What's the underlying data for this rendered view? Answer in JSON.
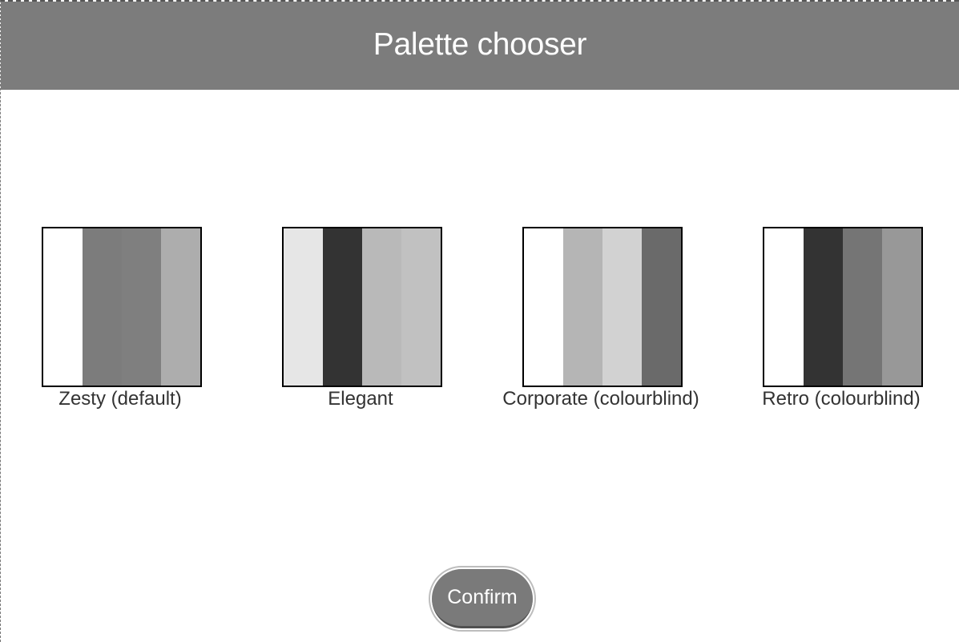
{
  "header": {
    "title": "Palette chooser"
  },
  "palettes": [
    {
      "label": "Zesty (default)",
      "colors": [
        "#ffffff",
        "#7c7c7c",
        "#7f7f7f",
        "#adadad"
      ]
    },
    {
      "label": "Elegant",
      "colors": [
        "#e6e6e6",
        "#333333",
        "#b9b9b9",
        "#c1c1c1"
      ]
    },
    {
      "label": "Corporate (colourblind)",
      "colors": [
        "#ffffff",
        "#b5b5b5",
        "#d2d2d2",
        "#6a6a6a"
      ]
    },
    {
      "label": "Retro (colourblind)",
      "colors": [
        "#ffffff",
        "#333333",
        "#757575",
        "#989898"
      ]
    }
  ],
  "confirm": {
    "label": "Confirm"
  }
}
